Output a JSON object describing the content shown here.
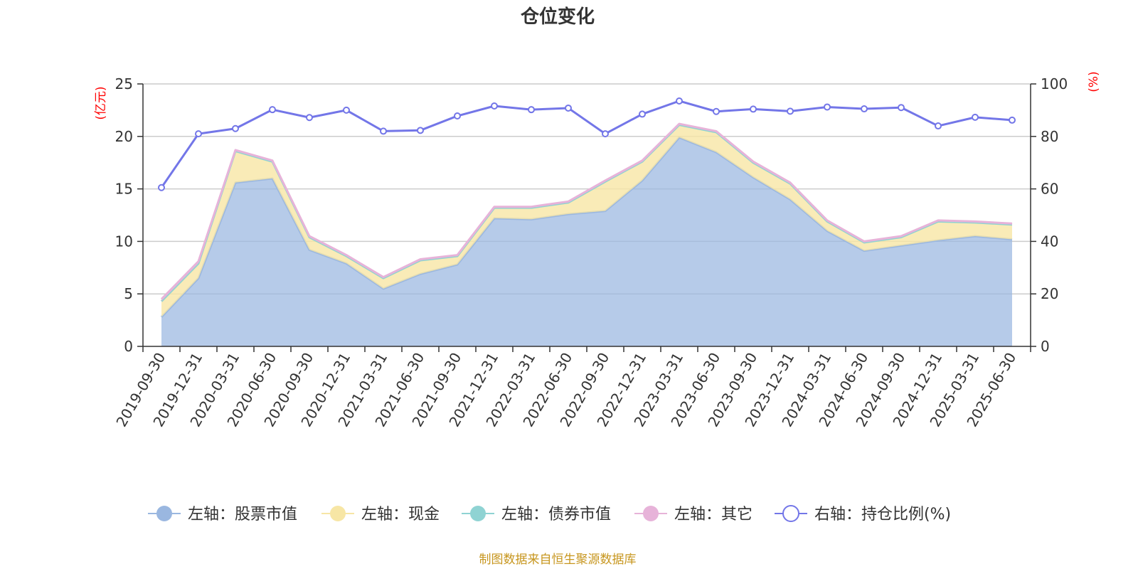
{
  "chart_data": {
    "type": "area",
    "title": "仓位变化",
    "left_axis_unit": "(亿元)",
    "right_axis_unit": "(%)",
    "left_ylim": [
      0,
      25
    ],
    "left_ticks": [
      0,
      5,
      10,
      15,
      20,
      25
    ],
    "right_ylim": [
      0,
      100
    ],
    "right_ticks": [
      0,
      20,
      40,
      60,
      80,
      100
    ],
    "grid": true,
    "legend_position": "bottom",
    "categories": [
      "2019-09-30",
      "2019-12-31",
      "2020-03-31",
      "2020-06-30",
      "2020-09-30",
      "2020-12-31",
      "2021-03-31",
      "2021-06-30",
      "2021-09-30",
      "2021-12-31",
      "2022-03-31",
      "2022-06-30",
      "2022-09-30",
      "2022-12-31",
      "2023-03-31",
      "2023-06-30",
      "2023-09-30",
      "2023-12-31",
      "2024-03-31",
      "2024-06-30",
      "2024-09-30",
      "2024-12-31",
      "2025-03-31",
      "2025-06-30"
    ],
    "series": [
      {
        "name": "左轴：股票市值",
        "axis": "left",
        "stacked": true,
        "color": "#9ab7e0",
        "values": [
          2.8,
          6.5,
          15.6,
          16.0,
          9.2,
          7.9,
          5.5,
          6.9,
          7.8,
          12.2,
          12.1,
          12.6,
          12.9,
          15.8,
          19.9,
          18.5,
          16.1,
          14.0,
          11.0,
          9.1,
          9.6,
          10.1,
          10.5,
          10.2
        ]
      },
      {
        "name": "左轴：现金",
        "axis": "left",
        "stacked": true,
        "color": "#f7e6a5",
        "values": [
          1.5,
          1.4,
          3.0,
          1.6,
          1.2,
          0.7,
          1.0,
          1.3,
          0.8,
          1.0,
          1.1,
          1.1,
          2.8,
          1.8,
          1.2,
          1.9,
          1.4,
          1.5,
          0.9,
          0.8,
          0.8,
          1.8,
          1.3,
          1.4
        ]
      },
      {
        "name": "左轴：债券市值",
        "axis": "left",
        "stacked": true,
        "color": "#8fd3d3",
        "values": [
          0,
          0,
          0,
          0,
          0,
          0,
          0,
          0,
          0,
          0,
          0,
          0,
          0,
          0,
          0,
          0,
          0,
          0,
          0,
          0,
          0,
          0,
          0,
          0
        ]
      },
      {
        "name": "左轴：其它",
        "axis": "left",
        "stacked": true,
        "color": "#e7b3d9",
        "values": [
          0.2,
          0.2,
          0.1,
          0.1,
          0.1,
          0.1,
          0.1,
          0.1,
          0.1,
          0.1,
          0.1,
          0.1,
          0.1,
          0.1,
          0.1,
          0.1,
          0.1,
          0.1,
          0.1,
          0.1,
          0.1,
          0.1,
          0.1,
          0.1
        ]
      },
      {
        "name": "右轴：持仓比例(%)",
        "axis": "right",
        "stacked": false,
        "color": "#7376e8",
        "values": [
          60.5,
          81.0,
          83.0,
          90.2,
          87.2,
          90.0,
          82.0,
          82.3,
          87.8,
          91.6,
          90.2,
          90.8,
          81.0,
          88.5,
          93.5,
          89.5,
          90.4,
          89.6,
          91.2,
          90.5,
          91.0,
          84.0,
          87.3,
          86.2
        ]
      }
    ]
  },
  "footer": {
    "source": "制图数据来自恒生聚源数据库"
  }
}
